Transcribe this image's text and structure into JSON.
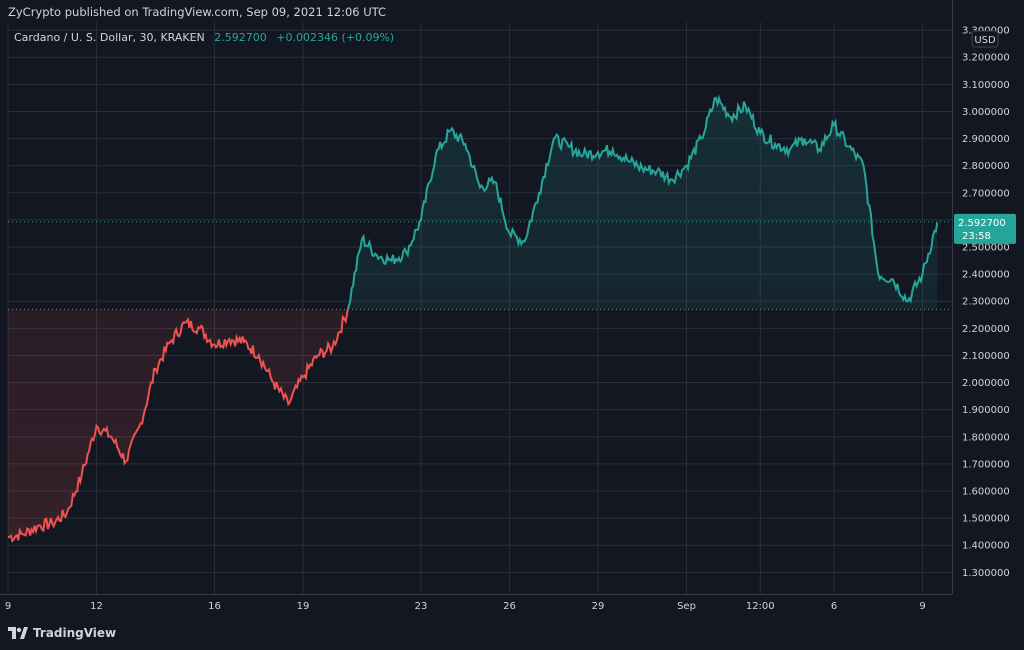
{
  "header": {
    "published_text": "ZyCrypto published on TradingView.com, Sep 09, 2021 12:06 UTC",
    "symbol_text": "Cardano / U. S. Dollar, 30, KRAKEN",
    "last_price": "2.592700",
    "change_text": "+0.002346 (+0.09%)"
  },
  "price_axis": {
    "currency": "USD",
    "last_price_label": "2.592700",
    "countdown_label": "23:58"
  },
  "footer": {
    "brand": "TradingView"
  },
  "colors": {
    "background": "#131722",
    "grid": "#2a2e39",
    "up": "#26a69a",
    "down": "#ef5350",
    "text": "#d1d4dc"
  },
  "chart_data": {
    "type": "line",
    "title": "",
    "xlabel": "",
    "ylabel": "",
    "ylim": [
      1.22,
      3.33
    ],
    "baseline": 2.27,
    "last_price": 2.5927,
    "y_ticks": [
      "3.300000",
      "3.200000",
      "3.100000",
      "3.000000",
      "2.900000",
      "2.800000",
      "2.700000",
      "2.600000",
      "2.500000",
      "2.400000",
      "2.300000",
      "2.200000",
      "2.100000",
      "2.000000",
      "1.900000",
      "1.800000",
      "1.700000",
      "1.600000",
      "1.500000",
      "1.400000",
      "1.300000"
    ],
    "y_tick_values": [
      3.3,
      3.2,
      3.1,
      3.0,
      2.9,
      2.8,
      2.7,
      2.6,
      2.5,
      2.4,
      2.3,
      2.2,
      2.1,
      2.0,
      1.9,
      1.8,
      1.7,
      1.6,
      1.5,
      1.4,
      1.3
    ],
    "x_ticks": [
      {
        "label": "9",
        "x": "2021-08-09"
      },
      {
        "label": "12",
        "x": "2021-08-12"
      },
      {
        "label": "16",
        "x": "2021-08-16"
      },
      {
        "label": "19",
        "x": "2021-08-19"
      },
      {
        "label": "23",
        "x": "2021-08-23"
      },
      {
        "label": "26",
        "x": "2021-08-26"
      },
      {
        "label": "29",
        "x": "2021-08-29"
      },
      {
        "label": "Sep",
        "x": "2021-09-01"
      },
      {
        "label": "12:00",
        "x": "2021-09-03 12:00"
      },
      {
        "label": "6",
        "x": "2021-09-06"
      },
      {
        "label": "9",
        "x": "2021-09-09"
      }
    ],
    "x_range": [
      "2021-08-09",
      "2021-09-10"
    ],
    "series": [
      {
        "x": [
          "2021-08-09 00:00",
          "2021-08-09 12:00",
          "2021-08-10 00:00",
          "2021-08-10 12:00",
          "2021-08-11 00:00",
          "2021-08-11 12:00",
          "2021-08-12 00:00",
          "2021-08-12 12:00",
          "2021-08-13 00:00",
          "2021-08-13 12:00",
          "2021-08-14 00:00",
          "2021-08-14 12:00",
          "2021-08-15 00:00",
          "2021-08-15 12:00",
          "2021-08-16 00:00",
          "2021-08-16 12:00",
          "2021-08-17 00:00",
          "2021-08-17 12:00",
          "2021-08-18 00:00",
          "2021-08-18 12:00",
          "2021-08-19 00:00",
          "2021-08-19 12:00",
          "2021-08-20 00:00",
          "2021-08-20 12:00",
          "2021-08-21 00:00",
          "2021-08-21 12:00",
          "2021-08-22 00:00",
          "2021-08-22 12:00",
          "2021-08-23 00:00",
          "2021-08-23 12:00",
          "2021-08-24 00:00",
          "2021-08-24 12:00",
          "2021-08-25 00:00",
          "2021-08-25 12:00",
          "2021-08-26 00:00",
          "2021-08-26 12:00",
          "2021-08-27 00:00",
          "2021-08-27 12:00",
          "2021-08-28 00:00",
          "2021-08-28 12:00",
          "2021-08-29 00:00",
          "2021-08-29 12:00",
          "2021-08-30 00:00",
          "2021-08-30 12:00",
          "2021-08-31 00:00",
          "2021-08-31 12:00",
          "2021-09-01 00:00",
          "2021-09-01 12:00",
          "2021-09-02 00:00",
          "2021-09-02 12:00",
          "2021-09-03 00:00",
          "2021-09-03 12:00",
          "2021-09-04 00:00",
          "2021-09-04 12:00",
          "2021-09-05 00:00",
          "2021-09-05 12:00",
          "2021-09-06 00:00",
          "2021-09-06 12:00",
          "2021-09-07 00:00",
          "2021-09-07 12:00",
          "2021-09-08 00:00",
          "2021-09-08 12:00",
          "2021-09-09 00:00",
          "2021-09-09 12:00"
        ],
        "values": [
          1.43,
          1.44,
          1.47,
          1.48,
          1.52,
          1.66,
          1.84,
          1.8,
          1.71,
          1.85,
          2.05,
          2.15,
          2.22,
          2.2,
          2.14,
          2.16,
          2.15,
          2.1,
          2.0,
          1.92,
          2.02,
          2.1,
          2.13,
          2.26,
          2.53,
          2.47,
          2.45,
          2.48,
          2.6,
          2.84,
          2.93,
          2.88,
          2.72,
          2.74,
          2.55,
          2.52,
          2.7,
          2.9,
          2.87,
          2.84,
          2.85,
          2.86,
          2.82,
          2.79,
          2.78,
          2.75,
          2.8,
          2.9,
          3.05,
          2.98,
          3.02,
          2.92,
          2.88,
          2.86,
          2.9,
          2.86,
          2.95,
          2.87,
          2.8,
          2.4,
          2.38,
          2.3,
          2.4,
          2.59
        ]
      }
    ]
  }
}
